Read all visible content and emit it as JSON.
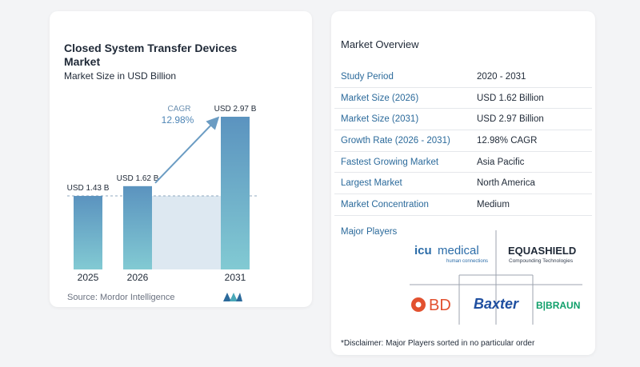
{
  "left": {
    "title": "Closed System Transfer Devices Market",
    "subtitle": "Market Size in USD Billion",
    "source": "Source:  Mordor Intelligence",
    "cagr_label": "CAGR",
    "cagr_value": "12.98%"
  },
  "chart_data": {
    "type": "bar",
    "categories": [
      "2025",
      "2026",
      "2031"
    ],
    "values": [
      1.43,
      1.62,
      2.97
    ],
    "data_labels": [
      "USD 1.43 B",
      "USD 1.62 B",
      "USD 2.97 B"
    ],
    "title": "Closed System Transfer Devices Market",
    "subtitle": "Market Size in USD Billion",
    "ylim": [
      0,
      2.97
    ],
    "grid": false,
    "colors": {
      "bar_top": "#5b93bf",
      "bar_bottom": "#82cad3",
      "band": "#dde8f1",
      "arrow": "#6b9cc3"
    }
  },
  "overview": {
    "title": "Market Overview",
    "rows": [
      {
        "key": "Study Period",
        "value": "2020 - 2031"
      },
      {
        "key": "Market Size (2026)",
        "value": "USD 1.62 Billion"
      },
      {
        "key": "Market Size (2031)",
        "value": "USD 2.97 Billion"
      },
      {
        "key": "Growth Rate (2026 - 2031)",
        "value": "12.98% CAGR"
      },
      {
        "key": "Fastest Growing Market",
        "value": "Asia Pacific"
      },
      {
        "key": "Largest Market",
        "value": "North America"
      },
      {
        "key": "Market Concentration",
        "value": "Medium"
      }
    ],
    "players_title": "Major Players",
    "players": {
      "icu_a": "icu",
      "icu_b": "medical",
      "icu_tag": "human connections",
      "equashield": "EQUASHIELD",
      "equashield_tag": "Compounding Technologies",
      "bd": "BD",
      "baxter": "Baxter",
      "bbraun": "B|BRAUN"
    },
    "disclaimer": "*Disclaimer: Major Players sorted in no particular order"
  }
}
